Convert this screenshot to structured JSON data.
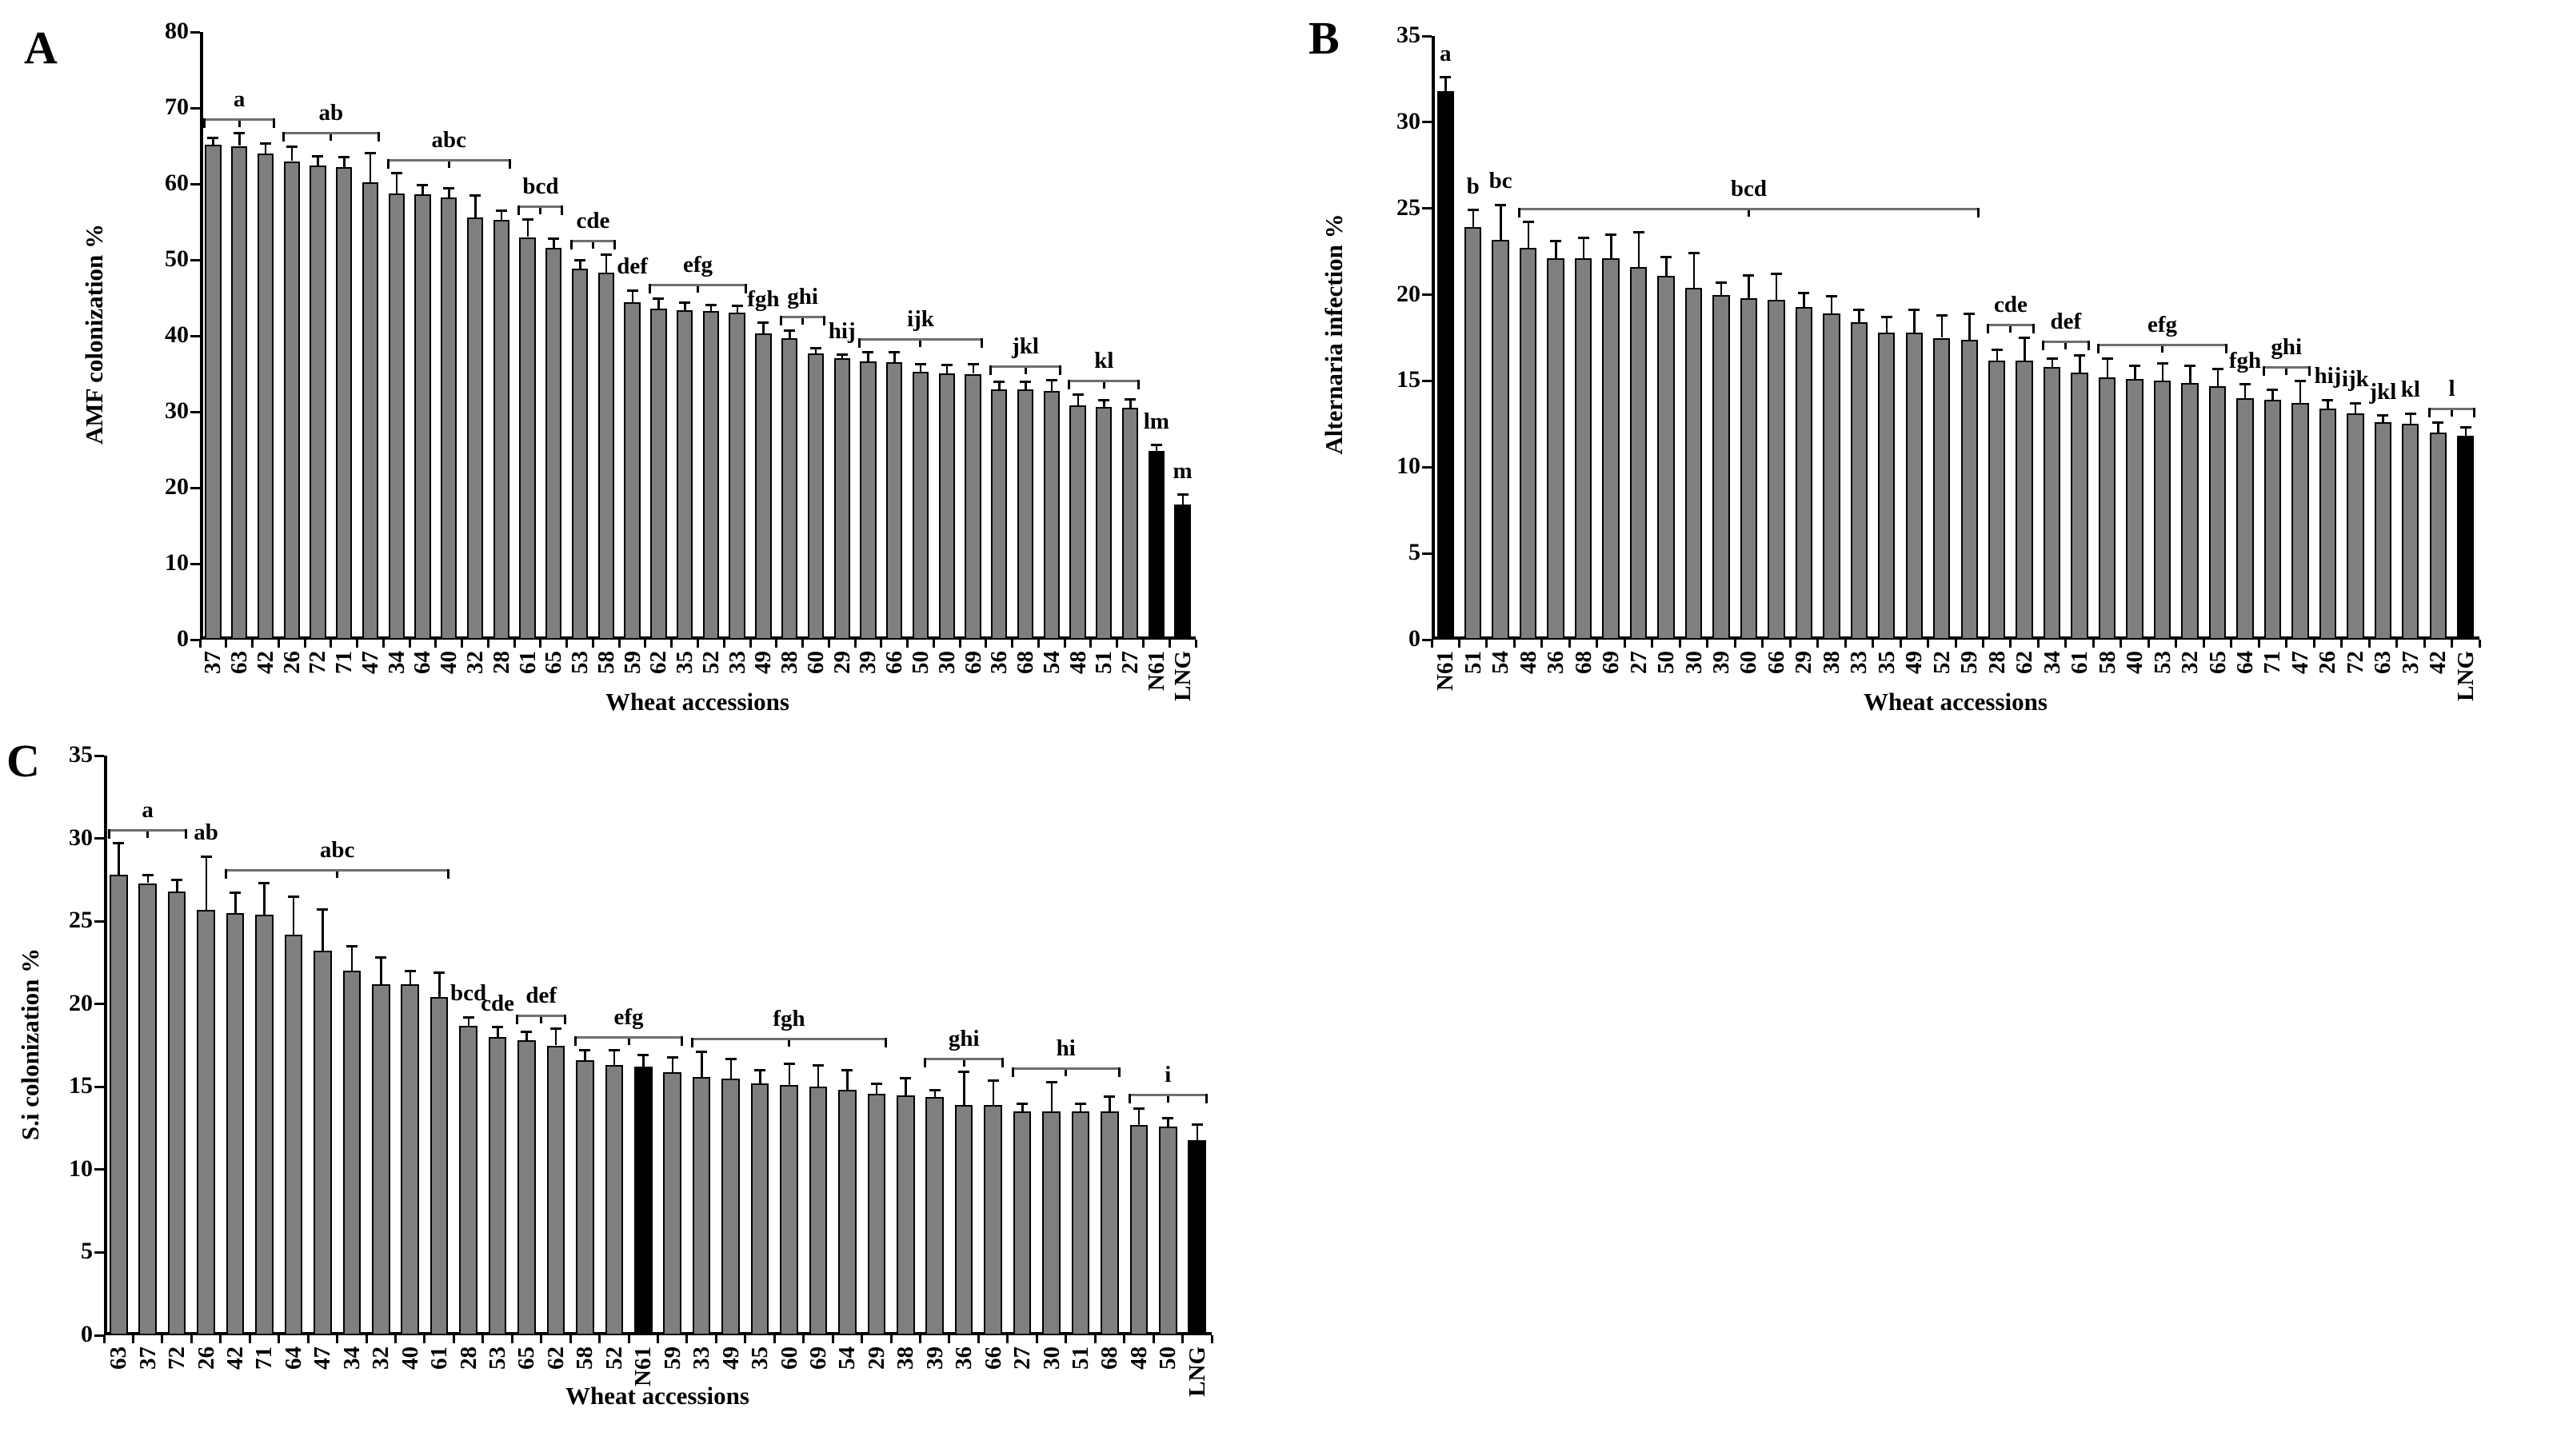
{
  "figure": {
    "panel_letters": [
      "A",
      "B",
      "C"
    ],
    "bar_color": "#7f7f7f",
    "highlight_bar_color": "#000000",
    "axis_color": "#000000"
  },
  "chart_data": [
    {
      "type": "bar",
      "panel_label": "A",
      "title": "",
      "xlabel": "Wheat accessions",
      "ylabel": "AMF colonization %",
      "ylim": [
        0,
        80
      ],
      "yticks": [
        0,
        10,
        20,
        30,
        40,
        50,
        60,
        70,
        80
      ],
      "legend": "none",
      "grid": false,
      "categories": [
        "37",
        "63",
        "42",
        "26",
        "72",
        "71",
        "47",
        "34",
        "64",
        "40",
        "32",
        "28",
        "61",
        "65",
        "53",
        "58",
        "59",
        "62",
        "35",
        "52",
        "33",
        "49",
        "38",
        "60",
        "29",
        "39",
        "66",
        "50",
        "30",
        "69",
        "36",
        "68",
        "54",
        "48",
        "51",
        "27",
        "N61",
        "LNG"
      ],
      "values": [
        65.2,
        65.0,
        64.0,
        63.0,
        62.4,
        62.2,
        60.2,
        58.7,
        58.6,
        58.2,
        55.6,
        55.3,
        53.0,
        51.6,
        48.8,
        48.3,
        44.4,
        43.6,
        43.4,
        43.3,
        43.1,
        40.3,
        39.7,
        37.7,
        37.1,
        36.6,
        36.5,
        35.3,
        35.1,
        35.0,
        33.0,
        32.9,
        32.7,
        30.8,
        30.6,
        30.5,
        24.8,
        17.8
      ],
      "errors": [
        0.9,
        1.7,
        1.3,
        1.9,
        1.2,
        1.3,
        3.9,
        2.7,
        1.2,
        1.2,
        2.9,
        1.2,
        2.3,
        1.2,
        1.2,
        2.4,
        1.6,
        1.3,
        1.0,
        0.8,
        0.9,
        1.4,
        1.0,
        0.7,
        0.4,
        1.2,
        1.3,
        1.0,
        1.1,
        1.3,
        1.0,
        1.1,
        1.5,
        1.5,
        0.9,
        1.1,
        0.8,
        1.3
      ],
      "black_bars": [
        "N61",
        "LNG"
      ],
      "groups": [
        {
          "label": "a",
          "from": 0,
          "to": 2
        },
        {
          "label": "ab",
          "from": 3,
          "to": 6
        },
        {
          "label": "abc",
          "from": 7,
          "to": 11
        },
        {
          "label": "bcd",
          "from": 12,
          "to": 13
        },
        {
          "label": "cde",
          "from": 14,
          "to": 15
        },
        {
          "label": "def",
          "from": 16,
          "to": 16
        },
        {
          "label": "efg",
          "from": 17,
          "to": 20
        },
        {
          "label": "fgh",
          "from": 21,
          "to": 21
        },
        {
          "label": "ghi",
          "from": 22,
          "to": 23
        },
        {
          "label": "hij",
          "from": 24,
          "to": 24
        },
        {
          "label": "ijk",
          "from": 25,
          "to": 29
        },
        {
          "label": "jkl",
          "from": 30,
          "to": 32
        },
        {
          "label": "kl",
          "from": 33,
          "to": 35
        },
        {
          "label": "lm",
          "from": 36,
          "to": 36
        },
        {
          "label": "m",
          "from": 37,
          "to": 37
        }
      ]
    },
    {
      "type": "bar",
      "panel_label": "B",
      "title": "",
      "xlabel": "Wheat accessions",
      "ylabel": "Alternaria infection %",
      "ylim": [
        0,
        35
      ],
      "yticks": [
        0,
        5,
        10,
        15,
        20,
        25,
        30,
        35
      ],
      "legend": "none",
      "grid": false,
      "categories": [
        "N61",
        "51",
        "54",
        "48",
        "36",
        "68",
        "69",
        "27",
        "50",
        "30",
        "39",
        "60",
        "66",
        "29",
        "38",
        "33",
        "35",
        "49",
        "52",
        "59",
        "28",
        "62",
        "34",
        "61",
        "58",
        "40",
        "53",
        "32",
        "65",
        "64",
        "71",
        "47",
        "26",
        "72",
        "63",
        "37",
        "42",
        "LNG"
      ],
      "values": [
        31.8,
        23.9,
        23.2,
        22.7,
        22.1,
        22.1,
        22.1,
        21.6,
        21.1,
        20.4,
        20.0,
        19.8,
        19.7,
        19.3,
        18.9,
        18.4,
        17.8,
        17.8,
        17.5,
        17.4,
        16.2,
        16.2,
        15.8,
        15.5,
        15.2,
        15.1,
        15.0,
        14.9,
        14.7,
        14.0,
        13.9,
        13.7,
        13.4,
        13.1,
        12.6,
        12.5,
        12.0,
        11.8
      ],
      "errors": [
        0.8,
        1.0,
        2.0,
        1.5,
        1.0,
        1.2,
        1.4,
        2.0,
        1.1,
        2.0,
        0.7,
        1.3,
        1.5,
        0.8,
        1.0,
        0.7,
        0.9,
        1.3,
        1.3,
        1.5,
        0.6,
        1.3,
        0.5,
        1.0,
        1.1,
        0.8,
        1.0,
        1.0,
        1.0,
        0.8,
        0.6,
        1.3,
        0.5,
        0.6,
        0.4,
        0.6,
        0.6,
        0.5
      ],
      "black_bars": [
        "N61",
        "LNG"
      ],
      "groups": [
        {
          "label": "a",
          "from": 0,
          "to": 0
        },
        {
          "label": "b",
          "from": 1,
          "to": 1
        },
        {
          "label": "bc",
          "from": 2,
          "to": 2
        },
        {
          "label": "bcd",
          "from": 3,
          "to": 19
        },
        {
          "label": "cde",
          "from": 20,
          "to": 21
        },
        {
          "label": "def",
          "from": 22,
          "to": 23
        },
        {
          "label": "efg",
          "from": 24,
          "to": 28
        },
        {
          "label": "fgh",
          "from": 29,
          "to": 29
        },
        {
          "label": "ghi",
          "from": 30,
          "to": 31
        },
        {
          "label": "hij",
          "from": 32,
          "to": 32
        },
        {
          "label": "ijk",
          "from": 33,
          "to": 33
        },
        {
          "label": "jkl",
          "from": 34,
          "to": 34
        },
        {
          "label": "kl",
          "from": 35,
          "to": 35
        },
        {
          "label": "l",
          "from": 36,
          "to": 37
        }
      ]
    },
    {
      "type": "bar",
      "panel_label": "C",
      "title": "",
      "xlabel": "Wheat accessions",
      "ylabel": "S.i colonization %",
      "ylim": [
        0,
        35
      ],
      "yticks": [
        0,
        5,
        10,
        15,
        20,
        25,
        30,
        35
      ],
      "legend": "none",
      "grid": false,
      "categories": [
        "63",
        "37",
        "72",
        "26",
        "42",
        "71",
        "64",
        "47",
        "34",
        "32",
        "40",
        "61",
        "28",
        "53",
        "65",
        "62",
        "58",
        "52",
        "N61",
        "59",
        "33",
        "49",
        "35",
        "60",
        "69",
        "54",
        "29",
        "38",
        "39",
        "36",
        "66",
        "27",
        "30",
        "51",
        "68",
        "48",
        "50",
        "LNG"
      ],
      "values": [
        27.8,
        27.3,
        26.8,
        25.7,
        25.5,
        25.4,
        24.2,
        23.2,
        22.0,
        21.2,
        21.2,
        20.4,
        18.7,
        18.0,
        17.8,
        17.5,
        16.6,
        16.3,
        16.2,
        15.9,
        15.6,
        15.5,
        15.2,
        15.1,
        15.0,
        14.8,
        14.6,
        14.5,
        14.4,
        13.9,
        13.9,
        13.5,
        13.5,
        13.5,
        13.5,
        12.7,
        12.6,
        11.8
      ],
      "errors": [
        1.9,
        0.5,
        0.7,
        3.2,
        1.2,
        1.9,
        2.3,
        2.5,
        1.5,
        1.6,
        0.8,
        1.5,
        0.5,
        0.6,
        0.5,
        1.0,
        0.6,
        0.9,
        0.7,
        0.9,
        1.5,
        1.2,
        0.8,
        1.3,
        1.3,
        1.2,
        0.6,
        1.0,
        0.4,
        2.0,
        1.5,
        0.5,
        1.8,
        0.5,
        0.9,
        1.0,
        0.5,
        0.9
      ],
      "black_bars": [
        "N61",
        "LNG"
      ],
      "groups": [
        {
          "label": "a",
          "from": 0,
          "to": 2
        },
        {
          "label": "ab",
          "from": 3,
          "to": 3
        },
        {
          "label": "abc",
          "from": 4,
          "to": 11
        },
        {
          "label": "bcd",
          "from": 12,
          "to": 12
        },
        {
          "label": "cde",
          "from": 13,
          "to": 13
        },
        {
          "label": "def",
          "from": 14,
          "to": 15
        },
        {
          "label": "efg",
          "from": 16,
          "to": 19
        },
        {
          "label": "fgh",
          "from": 20,
          "to": 26
        },
        {
          "label": "ghi",
          "from": 28,
          "to": 30
        },
        {
          "label": "hi",
          "from": 31,
          "to": 34
        },
        {
          "label": "i",
          "from": 35,
          "to": 37
        }
      ]
    }
  ]
}
